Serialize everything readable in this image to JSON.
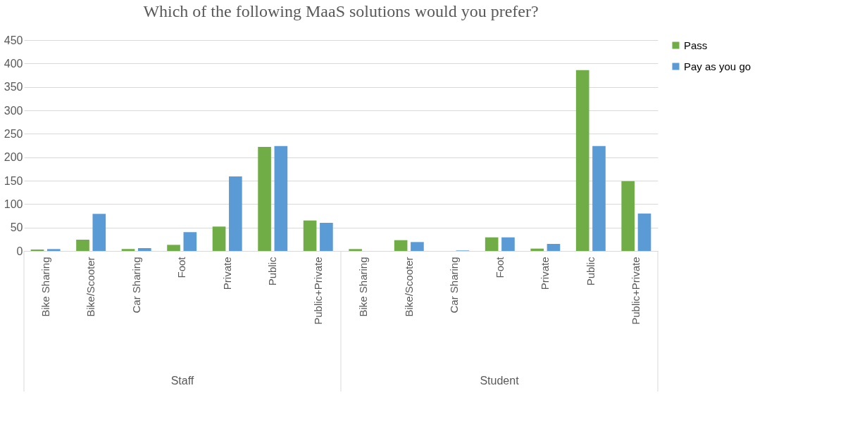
{
  "chart_data": {
    "type": "bar",
    "title": "Which of the following MaaS solutions would you prefer?",
    "categories": [
      "Bike Sharing",
      "Bike/Scooter",
      "Car Sharing",
      "Foot",
      "Private",
      "Public",
      "Public+Private",
      "Bike Sharing",
      "Bike/Scooter",
      "Car Sharing",
      "Foot",
      "Private",
      "Public",
      "Public+Private"
    ],
    "series": [
      {
        "name": "Pass",
        "color": "#70ad47",
        "values": [
          3,
          24,
          4,
          13,
          52,
          222,
          65,
          4,
          23,
          0,
          29,
          5,
          386,
          149
        ]
      },
      {
        "name": "Pay as you go",
        "color": "#5b9bd5",
        "values": [
          4,
          79,
          6,
          40,
          159,
          224,
          60,
          0,
          19,
          1,
          29,
          15,
          224,
          80
        ]
      }
    ],
    "ylim": [
      0,
      450
    ],
    "yticks": [
      0,
      50,
      100,
      150,
      200,
      250,
      300,
      350,
      400,
      450
    ],
    "grid": "y",
    "legend": "right",
    "annotations": [
      "Staff",
      "Student"
    ]
  }
}
